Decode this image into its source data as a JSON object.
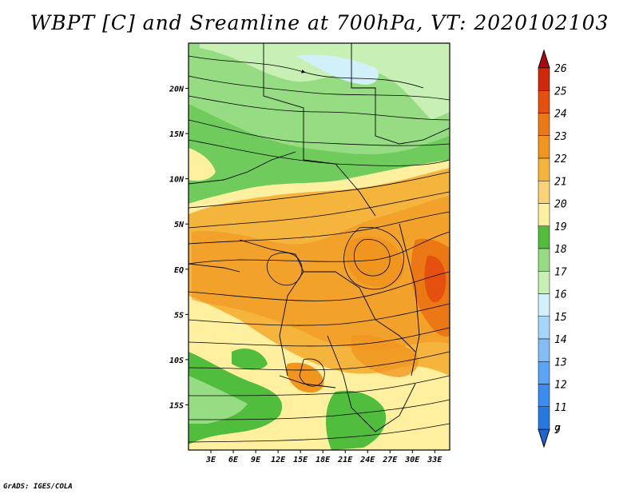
{
  "title": "WBPT [C] and Sreamline at 700hPa, VT: 2020102103",
  "footer": "GrADS: IGES/COLA",
  "map": {
    "lon_range": [
      0,
      35
    ],
    "lat_range": [
      -20,
      25
    ],
    "lon_ticks": [
      "3E",
      "6E",
      "9E",
      "12E",
      "15E",
      "18E",
      "21E",
      "24E",
      "27E",
      "30E",
      "33E"
    ],
    "lat_ticks": [
      "20N",
      "15N",
      "10N",
      "5N",
      "EQ",
      "5S",
      "10S",
      "15S"
    ]
  },
  "colorbar": {
    "labels": [
      "7",
      "9",
      "11",
      "12",
      "13",
      "14",
      "15",
      "16",
      "17",
      "18",
      "19",
      "20",
      "21",
      "22",
      "23",
      "24",
      "25",
      "26"
    ],
    "colors": [
      "#1e64d2",
      "#2878e1",
      "#3c8cf0",
      "#5aa5f5",
      "#82bef5",
      "#a5d7fa",
      "#d2f0fa",
      "#c8f0b4",
      "#96dc82",
      "#50be3c",
      "#fff0a0",
      "#fad278",
      "#f5b43c",
      "#f0961e",
      "#eb7814",
      "#e6500f",
      "#d2280a",
      "#aa0a0a"
    ]
  }
}
